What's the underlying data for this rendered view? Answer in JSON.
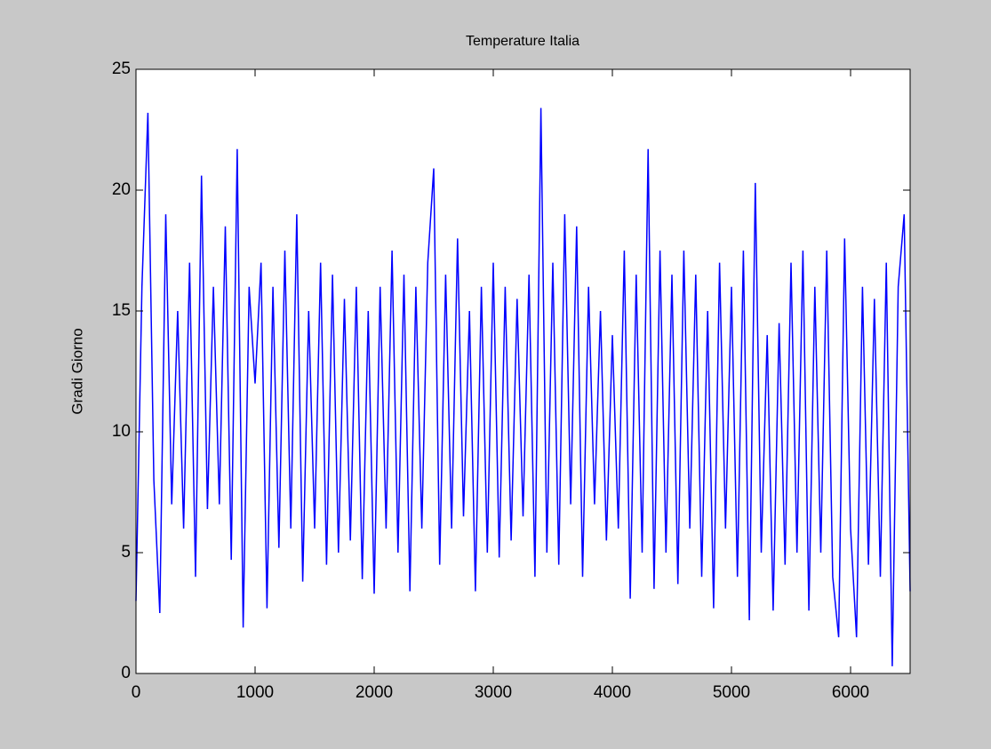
{
  "chart_data": {
    "type": "line",
    "title": "Temperature Italia",
    "ylabel": "Gradi Giorno",
    "color": "#0000ff",
    "xlim": [
      0,
      6500
    ],
    "xticks": [
      0,
      1000,
      2000,
      3000,
      4000,
      5000,
      6000
    ],
    "ylim": [
      0,
      25
    ],
    "yticks": [
      0,
      5,
      10,
      15,
      20,
      25
    ],
    "x": [
      0,
      50,
      100,
      150,
      200,
      250,
      300,
      350,
      400,
      450,
      500,
      550,
      600,
      650,
      700,
      750,
      800,
      850,
      900,
      950,
      1000,
      1050,
      1100,
      1150,
      1200,
      1250,
      1300,
      1350,
      1400,
      1450,
      1500,
      1550,
      1600,
      1650,
      1700,
      1750,
      1800,
      1850,
      1900,
      1950,
      2000,
      2050,
      2100,
      2150,
      2200,
      2250,
      2300,
      2350,
      2400,
      2450,
      2500,
      2550,
      2600,
      2650,
      2700,
      2750,
      2800,
      2850,
      2900,
      2950,
      3000,
      3050,
      3100,
      3150,
      3200,
      3250,
      3300,
      3350,
      3400,
      3450,
      3500,
      3550,
      3600,
      3650,
      3700,
      3750,
      3800,
      3850,
      3900,
      3950,
      4000,
      4050,
      4100,
      4150,
      4200,
      4250,
      4300,
      4350,
      4400,
      4450,
      4500,
      4550,
      4600,
      4650,
      4700,
      4750,
      4800,
      4850,
      4900,
      4950,
      5000,
      5050,
      5100,
      5150,
      5200,
      5250,
      5300,
      5350,
      5400,
      5450,
      5500,
      5550,
      5600,
      5650,
      5700,
      5750,
      5800,
      5850,
      5900,
      5950,
      6000,
      6050,
      6100,
      6150,
      6200,
      6250,
      6300,
      6350,
      6400,
      6450,
      6500
    ],
    "values": [
      3,
      16,
      23.2,
      8,
      2.5,
      19,
      7,
      15,
      6,
      17,
      4,
      20.6,
      6.8,
      16,
      7,
      18.5,
      4.7,
      21.7,
      1.9,
      16,
      12,
      17,
      2.7,
      16,
      5.2,
      17.5,
      6,
      19,
      3.8,
      15,
      6,
      17,
      4.5,
      16.5,
      5,
      15.5,
      5.5,
      16,
      3.9,
      15,
      3.3,
      16,
      6,
      17.5,
      5,
      16.5,
      3.4,
      16,
      6,
      17,
      20.9,
      4.5,
      16.5,
      6,
      18,
      6.5,
      15,
      3.4,
      16,
      5,
      17,
      4.8,
      16,
      5.5,
      15.5,
      6.5,
      16.5,
      4,
      23.4,
      5,
      17,
      4.5,
      19,
      7,
      18.5,
      4,
      16,
      7,
      15,
      5.5,
      14,
      6,
      17.5,
      3.1,
      16.5,
      5,
      21.7,
      3.5,
      17.5,
      5,
      16.5,
      3.7,
      17.5,
      6,
      16.5,
      4,
      15,
      2.7,
      17,
      6,
      16,
      4,
      17.5,
      2.2,
      20.3,
      5,
      14,
      2.6,
      14.5,
      4.5,
      17,
      5,
      17.5,
      2.6,
      16,
      5,
      17.5,
      4,
      1.5,
      18,
      6,
      1.5,
      16,
      4.5,
      15.5,
      4,
      17,
      0.3,
      16,
      19,
      3.4
    ]
  }
}
